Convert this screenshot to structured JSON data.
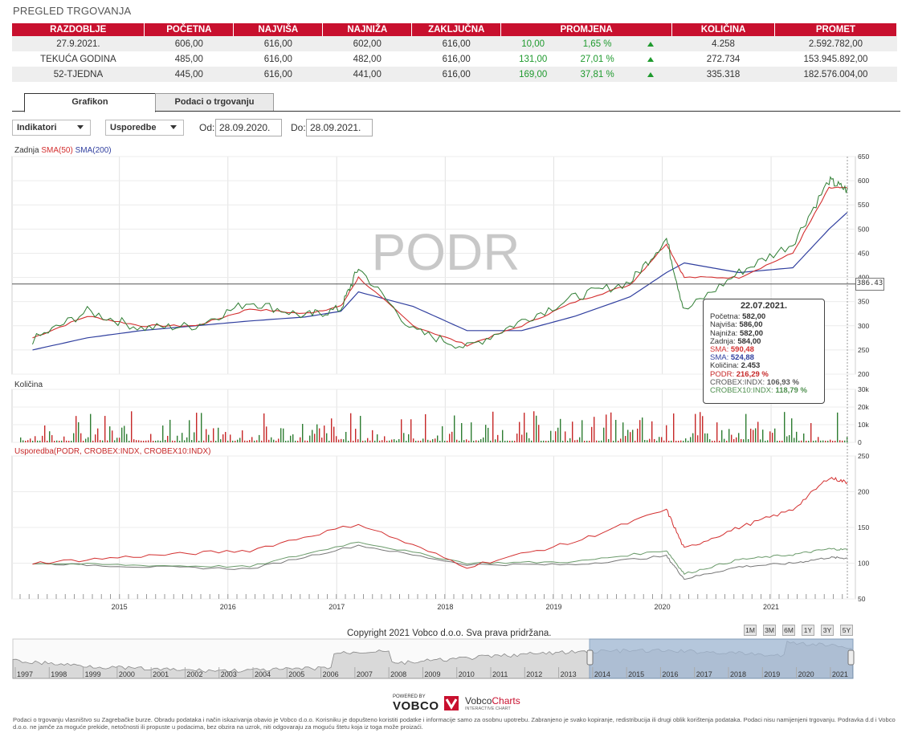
{
  "page_title": "PREGLED TRGOVANJA",
  "table": {
    "headers": [
      "RAZDOBLJE",
      "POČETNA",
      "NAJVIŠA",
      "NAJNIŽA",
      "ZAKLJUČNA",
      "PROMJENA",
      "KOLIČINA",
      "PROMET"
    ],
    "rows": [
      {
        "period": "27.9.2021.",
        "open": "606,00",
        "high": "616,00",
        "low": "602,00",
        "close": "616,00",
        "chg": "10,00",
        "chg_pct": "1,65 %",
        "volume": "4.258",
        "turnover": "2.592.782,00"
      },
      {
        "period": "TEKUĆA GODINA",
        "open": "485,00",
        "high": "616,00",
        "low": "482,00",
        "close": "616,00",
        "chg": "131,00",
        "chg_pct": "27,01 %",
        "volume": "272.734",
        "turnover": "153.945.892,00"
      },
      {
        "period": "52-TJEDNA",
        "open": "445,00",
        "high": "616,00",
        "low": "441,00",
        "close": "616,00",
        "chg": "169,00",
        "chg_pct": "37,81 %",
        "volume": "335.318",
        "turnover": "182.576.004,00"
      }
    ]
  },
  "tabs": {
    "grafikon": "Grafikon",
    "podaci": "Podaci o trgovanju"
  },
  "controls": {
    "indikatori": "Indikatori",
    "usporedbe": "Usporedbe",
    "od_label": "Od:",
    "od_value": "28.09.2020.",
    "do_label": "Do:",
    "do_value": "28.09.2021."
  },
  "legend": {
    "zadnja": "Zadnja",
    "sma50": "SMA(50)",
    "sma200": "SMA(200)",
    "kolicina": "Količina",
    "usporedba": "Usporedba(PODR, CROBEX:INDX, CROBEX10:INDX)"
  },
  "watermark": "PODR",
  "crosshair_value": "386.43",
  "tooltip": {
    "date": "22.07.2021.",
    "rows": [
      {
        "label": "Početna:",
        "value": "582,00"
      },
      {
        "label": "Najviša:",
        "value": "586,00"
      },
      {
        "label": "Najniža:",
        "value": "582,00"
      },
      {
        "label": "Zadnja:",
        "value": "584,00"
      },
      {
        "label": "SMA:",
        "value": "590,48"
      },
      {
        "label": "SMA:",
        "value": "524,88"
      },
      {
        "label": "Količina:",
        "value": "2.453"
      },
      {
        "label": "PODR:",
        "value": "216,29 %"
      },
      {
        "label": "CROBEX:INDX:",
        "value": "106,93 %"
      },
      {
        "label": "CROBEX10:INDX:",
        "value": "118,79 %"
      }
    ]
  },
  "copyright": "Copyright 2021 Vobco d.o.o. Sva prava pridržana.",
  "range_buttons": [
    "1M",
    "3M",
    "6M",
    "1Y",
    "3Y",
    "5Y"
  ],
  "navigator_years": [
    "1997",
    "1998",
    "1999",
    "2000",
    "2001",
    "2002",
    "2003",
    "2004",
    "2005",
    "2006",
    "2007",
    "2008",
    "2009",
    "2010",
    "2011",
    "2012",
    "2013",
    "2014",
    "2015",
    "2016",
    "2017",
    "2018",
    "2019",
    "2020",
    "2021"
  ],
  "powered_by": {
    "small": "POWERED BY",
    "brand": "VOBCO",
    "charts1": "Vobco",
    "charts2": "Charts",
    "charts_sub": "INTERACTIVE CHART"
  },
  "footer": "Podaci o trgovanju vlasništvo su Zagrebačke burze. Obradu podataka i način iskazivanja obavio je Vobco d.o.o. Korisniku je dopušteno koristiti podatke i informacije samo za osobnu upotrebu. Zabranjeno je svako kopiranje, redistribucija ili drugi oblik korištenja podataka. Podaci nisu namijenjeni trgovanju. Podravka d.d i Vobco d.o.o. ne jamče za moguće prekide, netočnosti ili propuste u podacima, bez obzira na uzrok, niti odgovaraju za moguću štetu koja iz toga može proizaći.",
  "colors": {
    "header_red": "#c8102e",
    "up_green": "#1f9a2e",
    "price": "#2e7d32",
    "sma50": "#d32f2f",
    "sma200": "#303f9f",
    "crobex": "#777777",
    "crobex10": "#6a9a6a",
    "navigator_sel": "#9fb6d2"
  },
  "chart_data": [
    {
      "type": "line",
      "title": "",
      "series_names": [
        "Zadnja",
        "SMA(50)",
        "SMA(200)"
      ],
      "x": [
        "2014-03",
        "2014-09",
        "2015-03",
        "2015-09",
        "2016-03",
        "2016-09",
        "2017-01",
        "2017-03",
        "2017-09",
        "2018-03",
        "2018-09",
        "2019-03",
        "2019-09",
        "2020-01",
        "2020-03",
        "2020-09",
        "2021-03",
        "2021-07",
        "2021-09"
      ],
      "series": [
        {
          "name": "Zadnja",
          "values": [
            270,
            330,
            295,
            300,
            350,
            320,
            335,
            420,
            290,
            255,
            310,
            360,
            390,
            480,
            330,
            410,
            470,
            600,
            580
          ]
        },
        {
          "name": "SMA(50)",
          "values": [
            275,
            320,
            300,
            300,
            335,
            325,
            340,
            400,
            300,
            260,
            300,
            350,
            385,
            470,
            400,
            400,
            450,
            585,
            585
          ]
        },
        {
          "name": "SMA(200)",
          "values": [
            250,
            275,
            290,
            300,
            310,
            318,
            330,
            370,
            340,
            290,
            290,
            320,
            360,
            410,
            430,
            410,
            420,
            500,
            535
          ]
        }
      ],
      "ylim": [
        200,
        650
      ],
      "yticks": [
        200,
        250,
        300,
        350,
        400,
        450,
        500,
        550,
        600,
        650
      ]
    },
    {
      "type": "bar",
      "series_names": [
        "Količina"
      ],
      "ylim": [
        0,
        30000
      ],
      "yticks": [
        "0",
        "10k",
        "20k",
        "30k"
      ]
    },
    {
      "type": "line",
      "series_names": [
        "PODR",
        "CROBEX:INDX",
        "CROBEX10:INDX"
      ],
      "x": [
        "2014-03",
        "2015-03",
        "2016-03",
        "2017-03",
        "2018-03",
        "2019-03",
        "2020-01",
        "2020-03",
        "2020-09",
        "2021-03",
        "2021-07",
        "2021-09"
      ],
      "series": [
        {
          "name": "PODR",
          "values": [
            100,
            110,
            118,
            155,
            95,
            130,
            175,
            120,
            150,
            175,
            220,
            213
          ]
        },
        {
          "name": "CROBEX:INDX",
          "values": [
            100,
            95,
            92,
            125,
            98,
            98,
            110,
            78,
            95,
            100,
            108,
            107
          ]
        },
        {
          "name": "CROBEX10:INDX",
          "values": [
            100,
            97,
            95,
            130,
            100,
            102,
            118,
            85,
            105,
            112,
            120,
            119
          ]
        }
      ],
      "ylim": [
        50,
        250
      ],
      "yticks": [
        50,
        100,
        150,
        200,
        250
      ],
      "xticks": [
        "2015",
        "2016",
        "2017",
        "2018",
        "2019",
        "2020",
        "2021"
      ]
    }
  ]
}
